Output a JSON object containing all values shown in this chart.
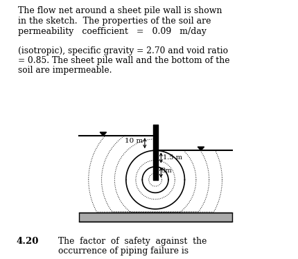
{
  "title_line1": "The flow net around a sheet pile wall is shown",
  "title_line2": "in the sketch.  The properties of the soil are",
  "title_line3": "permeability   coefficient   =   0.09   m/day",
  "para2_line1": "(isotropic), specific gravity = 2.70 and void ratio",
  "para2_line2": "= 0.85. The sheet pile wall and the bottom of the",
  "para2_line3": "soil are impermeable.",
  "bottom_text_num": "4.20",
  "bottom_text_line1": "The  factor  of  safety  against  the",
  "bottom_text_line2": "occurrence of piping failure is",
  "bg_color": "#ffffff",
  "text_color": "#000000",
  "label_10m": "10 m",
  "label_1p5m": "1.5 m",
  "label_3m": "3m"
}
